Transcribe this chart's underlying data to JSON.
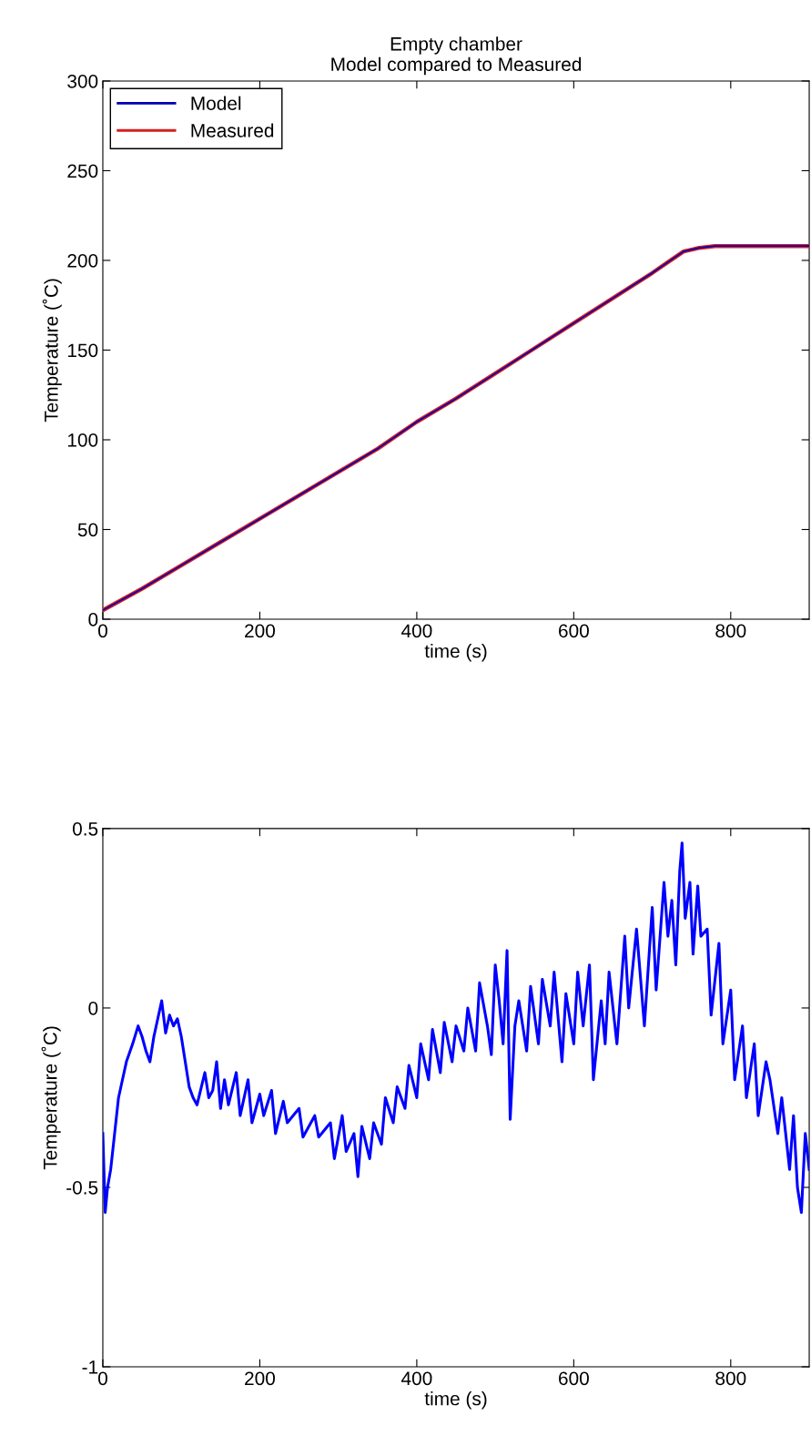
{
  "chart_data": [
    {
      "type": "line",
      "title": "Empty chamber\nModel compared to Measured",
      "xlabel": "time (s)",
      "ylabel": "Temperature (˚C)",
      "x": [
        0,
        50,
        100,
        150,
        200,
        250,
        300,
        350,
        400,
        450,
        500,
        550,
        600,
        650,
        700,
        720,
        740,
        760,
        780,
        800,
        850,
        900
      ],
      "series": [
        {
          "name": "Model",
          "color": "#0000b4",
          "values": [
            5,
            17,
            30,
            43,
            56,
            69,
            82,
            95,
            110,
            123,
            137,
            151,
            165,
            179,
            193,
            199,
            205,
            207,
            208,
            208,
            208,
            208
          ]
        },
        {
          "name": "Measured",
          "color": "#d42020",
          "values": [
            5,
            17,
            30,
            43,
            56,
            69,
            82,
            95,
            110,
            123,
            137,
            151,
            165,
            179,
            193,
            199,
            205,
            207,
            208,
            208,
            208,
            208
          ]
        }
      ],
      "xlim": [
        0,
        900
      ],
      "xticks": [
        0,
        200,
        400,
        600,
        800
      ],
      "ylim": [
        0,
        300
      ],
      "yticks": [
        0,
        50,
        100,
        150,
        200,
        250,
        300
      ],
      "legend": "top left",
      "grid": false
    },
    {
      "type": "line",
      "xlabel": "time (s)",
      "ylabel": "Temperature (˚C)",
      "x": [
        0,
        3,
        6,
        10,
        15,
        20,
        25,
        30,
        38,
        45,
        50,
        55,
        60,
        65,
        70,
        75,
        80,
        85,
        90,
        95,
        100,
        105,
        110,
        115,
        120,
        130,
        135,
        140,
        145,
        150,
        155,
        160,
        170,
        175,
        185,
        190,
        200,
        205,
        215,
        220,
        230,
        235,
        250,
        255,
        270,
        275,
        290,
        295,
        305,
        310,
        320,
        325,
        330,
        340,
        345,
        355,
        360,
        370,
        375,
        385,
        390,
        400,
        405,
        415,
        420,
        430,
        435,
        445,
        450,
        460,
        465,
        475,
        480,
        490,
        495,
        500,
        505,
        510,
        515,
        519,
        525,
        530,
        540,
        545,
        555,
        560,
        570,
        575,
        585,
        590,
        600,
        605,
        612,
        620,
        625,
        635,
        640,
        645,
        655,
        665,
        670,
        680,
        690,
        700,
        705,
        715,
        720,
        725,
        730,
        735,
        738,
        742,
        748,
        752,
        758,
        762,
        770,
        775,
        785,
        790,
        800,
        805,
        815,
        820,
        830,
        835,
        845,
        850,
        860,
        865,
        875,
        880,
        885,
        890,
        895,
        900
      ],
      "series": [
        {
          "color": "#0000ff",
          "values": [
            -0.35,
            -0.57,
            -0.5,
            -0.45,
            -0.35,
            -0.25,
            -0.2,
            -0.15,
            -0.1,
            -0.05,
            -0.08,
            -0.12,
            -0.15,
            -0.08,
            -0.03,
            0.02,
            -0.07,
            -0.02,
            -0.05,
            -0.03,
            -0.08,
            -0.15,
            -0.22,
            -0.25,
            -0.27,
            -0.18,
            -0.25,
            -0.23,
            -0.15,
            -0.28,
            -0.2,
            -0.27,
            -0.18,
            -0.3,
            -0.2,
            -0.32,
            -0.24,
            -0.3,
            -0.23,
            -0.35,
            -0.26,
            -0.32,
            -0.28,
            -0.36,
            -0.3,
            -0.36,
            -0.32,
            -0.42,
            -0.3,
            -0.4,
            -0.35,
            -0.47,
            -0.33,
            -0.42,
            -0.32,
            -0.38,
            -0.25,
            -0.32,
            -0.22,
            -0.28,
            -0.16,
            -0.25,
            -0.1,
            -0.2,
            -0.06,
            -0.18,
            -0.04,
            -0.15,
            -0.05,
            -0.12,
            0.0,
            -0.12,
            0.07,
            -0.05,
            -0.13,
            0.12,
            0.02,
            -0.1,
            0.16,
            -0.31,
            -0.05,
            0.02,
            -0.12,
            0.06,
            -0.1,
            0.08,
            -0.05,
            0.1,
            -0.15,
            0.04,
            -0.1,
            0.1,
            -0.05,
            0.12,
            -0.2,
            0.02,
            -0.1,
            0.1,
            -0.1,
            0.2,
            0.0,
            0.22,
            -0.05,
            0.28,
            0.05,
            0.35,
            0.2,
            0.3,
            0.12,
            0.38,
            0.46,
            0.25,
            0.35,
            0.15,
            0.34,
            0.2,
            0.22,
            -0.02,
            0.18,
            -0.1,
            0.05,
            -0.2,
            -0.05,
            -0.25,
            -0.1,
            -0.3,
            -0.15,
            -0.2,
            -0.35,
            -0.25,
            -0.45,
            -0.3,
            -0.5,
            -0.57,
            -0.35,
            -0.45
          ]
        }
      ],
      "xlim": [
        0,
        900
      ],
      "xticks": [
        0,
        200,
        400,
        600,
        800
      ],
      "ylim": [
        -1,
        0.5
      ],
      "yticks": [
        -1,
        -0.5,
        0,
        0.5
      ],
      "grid": false
    }
  ]
}
